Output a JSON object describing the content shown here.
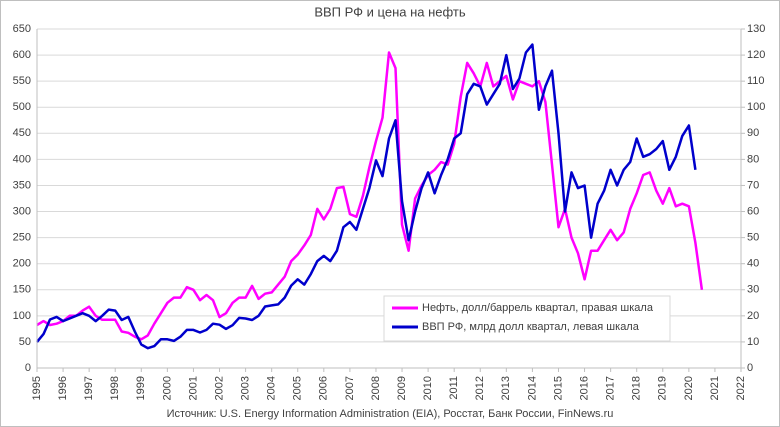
{
  "chart_data": {
    "type": "line",
    "title": "ВВП РФ и цена на нефть",
    "source": "Источник: U.S. Energy Information Administration (EIA), Росстат, Банк России, FinNews.ru",
    "x": [
      1995,
      1995.25,
      1995.5,
      1995.75,
      1996,
      1996.25,
      1996.5,
      1996.75,
      1997,
      1997.25,
      1997.5,
      1997.75,
      1998,
      1998.25,
      1998.5,
      1998.75,
      1999,
      1999.25,
      1999.5,
      1999.75,
      2000,
      2000.25,
      2000.5,
      2000.75,
      2001,
      2001.25,
      2001.5,
      2001.75,
      2002,
      2002.25,
      2002.5,
      2002.75,
      2003,
      2003.25,
      2003.5,
      2003.75,
      2004,
      2004.25,
      2004.5,
      2004.75,
      2005,
      2005.25,
      2005.5,
      2005.75,
      2006,
      2006.25,
      2006.5,
      2006.75,
      2007,
      2007.25,
      2007.5,
      2007.75,
      2008,
      2008.25,
      2008.5,
      2008.75,
      2009,
      2009.25,
      2009.5,
      2009.75,
      2010,
      2010.25,
      2010.5,
      2010.75,
      2011,
      2011.25,
      2011.5,
      2011.75,
      2012,
      2012.25,
      2012.5,
      2012.75,
      2013,
      2013.25,
      2013.5,
      2013.75,
      2014,
      2014.25,
      2014.5,
      2014.75,
      2015,
      2015.25,
      2015.5,
      2015.75,
      2016,
      2016.25,
      2016.5,
      2016.75,
      2017,
      2017.25,
      2017.5,
      2017.75,
      2018,
      2018.25,
      2018.5,
      2018.75,
      2019,
      2019.25,
      2019.5,
      2019.75,
      2020,
      2020.25,
      2020.5
    ],
    "series": [
      {
        "name": "Нефть, долл/баррель квартал, правая шкала",
        "color": "#ff00ff",
        "axis": "y2",
        "values": [
          16.5,
          18,
          16.5,
          17,
          18,
          20,
          20,
          22,
          23.5,
          20,
          18.5,
          18.5,
          18.5,
          14,
          13.5,
          12,
          11,
          12.5,
          17,
          21,
          25,
          27,
          27,
          31,
          30,
          26,
          28,
          26,
          19.5,
          21,
          25,
          27,
          27,
          31.5,
          26.5,
          28.5,
          29,
          32,
          35,
          41,
          43.5,
          47,
          51,
          61,
          57,
          61,
          69,
          69.5,
          59,
          58,
          66,
          77,
          87,
          96,
          121,
          115,
          55,
          45,
          65,
          70,
          74,
          76,
          79,
          78,
          86,
          104,
          117,
          113,
          108,
          117,
          108,
          110,
          112,
          103,
          110,
          109,
          108,
          110,
          102,
          78,
          54,
          61,
          50,
          44,
          34,
          45,
          45,
          49,
          53,
          49,
          52,
          61,
          67,
          74,
          75,
          68,
          63,
          69,
          62,
          63,
          62,
          48,
          30
        ]
      },
      {
        "name": "ВВП РФ, млрд долл квартал, левая шкала",
        "color": "#0000cc",
        "values": [
          50,
          65,
          93,
          98,
          90,
          95,
          100,
          105,
          100,
          90,
          100,
          112,
          110,
          92,
          98,
          70,
          45,
          38,
          42,
          55,
          55,
          52,
          60,
          73,
          73,
          68,
          73,
          85,
          83,
          75,
          82,
          96,
          95,
          92,
          100,
          118,
          120,
          122,
          135,
          158,
          170,
          160,
          180,
          205,
          215,
          205,
          225,
          270,
          280,
          265,
          305,
          345,
          398,
          368,
          440,
          475,
          320,
          245,
          300,
          345,
          375,
          335,
          370,
          400,
          440,
          450,
          525,
          545,
          540,
          505,
          525,
          545,
          600,
          535,
          555,
          605,
          620,
          495,
          540,
          570,
          450,
          300,
          375,
          345,
          350,
          250,
          315,
          340,
          380,
          350,
          380,
          395,
          440,
          405,
          410,
          420,
          435,
          380,
          405,
          445,
          465,
          380,
          null
        ]
      }
    ],
    "xlim": [
      1995,
      2022
    ],
    "xticks": [
      1995,
      1996,
      1997,
      1998,
      1999,
      2000,
      2001,
      2002,
      2003,
      2004,
      2005,
      2006,
      2007,
      2008,
      2009,
      2010,
      2011,
      2012,
      2013,
      2014,
      2015,
      2016,
      2017,
      2018,
      2019,
      2020,
      2021,
      2022
    ],
    "ylim": [
      0,
      650
    ],
    "yticks": [
      0,
      50,
      100,
      150,
      200,
      250,
      300,
      350,
      400,
      450,
      500,
      550,
      600,
      650
    ],
    "y2lim": [
      0,
      130
    ],
    "y2ticks": [
      0,
      10,
      20,
      30,
      40,
      50,
      60,
      70,
      80,
      90,
      100,
      110,
      120,
      130
    ],
    "grid": true
  }
}
